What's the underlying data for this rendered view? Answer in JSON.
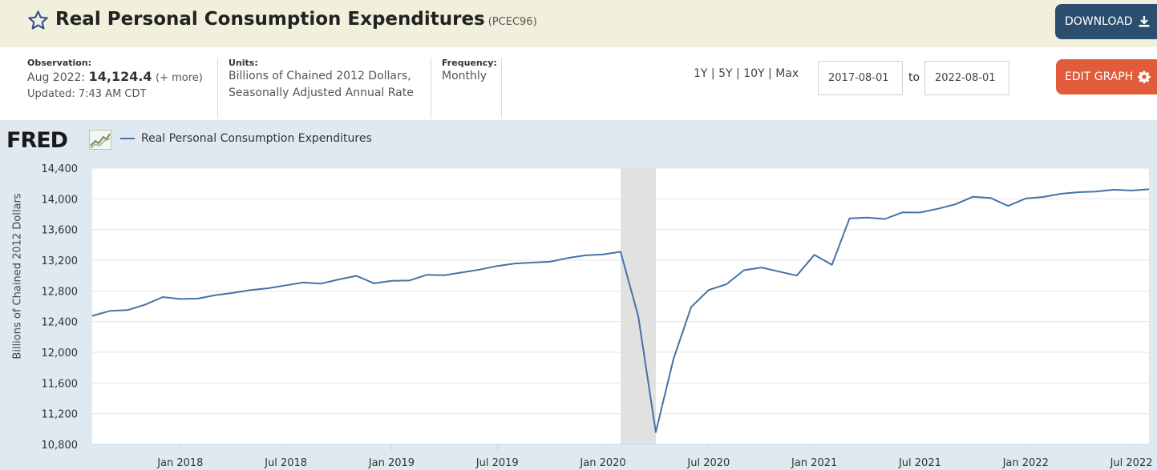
{
  "header": {
    "title": "Real Personal Consumption Expenditures",
    "series_id": "(PCEC96)",
    "download_label": "DOWNLOAD",
    "icons": [
      "star-icon",
      "download-icon"
    ]
  },
  "info": {
    "observation_label": "Observation:",
    "observation_date": "Aug 2022:",
    "observation_value": "14,124.4",
    "observation_more": "(+ more)",
    "updated": "Updated: 7:43 AM CDT",
    "units_label": "Units:",
    "units_line1": "Billions of Chained 2012 Dollars,",
    "units_line2": "Seasonally Adjusted Annual Rate",
    "frequency_label": "Frequency:",
    "frequency_value": "Monthly"
  },
  "controls": {
    "range_1y": "1Y",
    "range_5y": "5Y",
    "range_10y": "10Y",
    "range_max": "Max",
    "sep": "|",
    "date_from": "2017-08-01",
    "to_label": "to",
    "date_to": "2022-08-01",
    "edit_label": "EDIT GRAPH",
    "edit_icon": "gear-icon"
  },
  "chart_data": {
    "type": "line",
    "logo": "FRED",
    "ylabel": "Billions of Chained 2012 Dollars",
    "ylim": [
      10800,
      14400
    ],
    "yticks": [
      10800,
      11200,
      11600,
      12000,
      12400,
      12800,
      13200,
      13600,
      14000,
      14400
    ],
    "ytick_labels": [
      "10,800",
      "11,200",
      "11,600",
      "12,000",
      "12,400",
      "12,800",
      "13,200",
      "13,600",
      "14,000",
      "14,400"
    ],
    "xlim": [
      "2017-08",
      "2022-08"
    ],
    "xticks": [
      "2018-01",
      "2018-07",
      "2019-01",
      "2019-07",
      "2020-01",
      "2020-07",
      "2021-01",
      "2021-07",
      "2022-01",
      "2022-07"
    ],
    "xtick_labels": [
      "Jan 2018",
      "Jul 2018",
      "Jan 2019",
      "Jul 2019",
      "Jan 2020",
      "Jul 2020",
      "Jan 2021",
      "Jul 2021",
      "Jan 2022",
      "Jul 2022"
    ],
    "recession": {
      "start": "2020-02",
      "end": "2020-04"
    },
    "grid": "horizontal",
    "legend_position": "top-left",
    "line_color": "#4572a7",
    "series": [
      {
        "name": "Real Personal Consumption Expenditures",
        "x": [
          "2017-08",
          "2017-09",
          "2017-10",
          "2017-11",
          "2017-12",
          "2018-01",
          "2018-02",
          "2018-03",
          "2018-04",
          "2018-05",
          "2018-06",
          "2018-07",
          "2018-08",
          "2018-09",
          "2018-10",
          "2018-11",
          "2018-12",
          "2019-01",
          "2019-02",
          "2019-03",
          "2019-04",
          "2019-05",
          "2019-06",
          "2019-07",
          "2019-08",
          "2019-09",
          "2019-10",
          "2019-11",
          "2019-12",
          "2020-01",
          "2020-02",
          "2020-03",
          "2020-04",
          "2020-05",
          "2020-06",
          "2020-07",
          "2020-08",
          "2020-09",
          "2020-10",
          "2020-11",
          "2020-12",
          "2021-01",
          "2021-02",
          "2021-03",
          "2021-04",
          "2021-05",
          "2021-06",
          "2021-07",
          "2021-08",
          "2021-09",
          "2021-10",
          "2021-11",
          "2021-12",
          "2022-01",
          "2022-02",
          "2022-03",
          "2022-04",
          "2022-05",
          "2022-06",
          "2022-07",
          "2022-08"
        ],
        "y": [
          12475,
          12540,
          12550,
          12620,
          12720,
          12695,
          12700,
          12745,
          12775,
          12812,
          12835,
          12873,
          12910,
          12895,
          12950,
          12997,
          12898,
          12932,
          12935,
          13010,
          13005,
          13040,
          13078,
          13125,
          13157,
          13170,
          13180,
          13228,
          13264,
          13276,
          13310,
          12473,
          10960,
          11910,
          12587,
          12812,
          12886,
          13070,
          13105,
          13052,
          13000,
          13270,
          13140,
          13746,
          13755,
          13737,
          13823,
          13822,
          13870,
          13928,
          14026,
          14012,
          13908,
          14005,
          14024,
          14066,
          14087,
          14094,
          14119,
          14108,
          14124.4
        ]
      }
    ]
  }
}
